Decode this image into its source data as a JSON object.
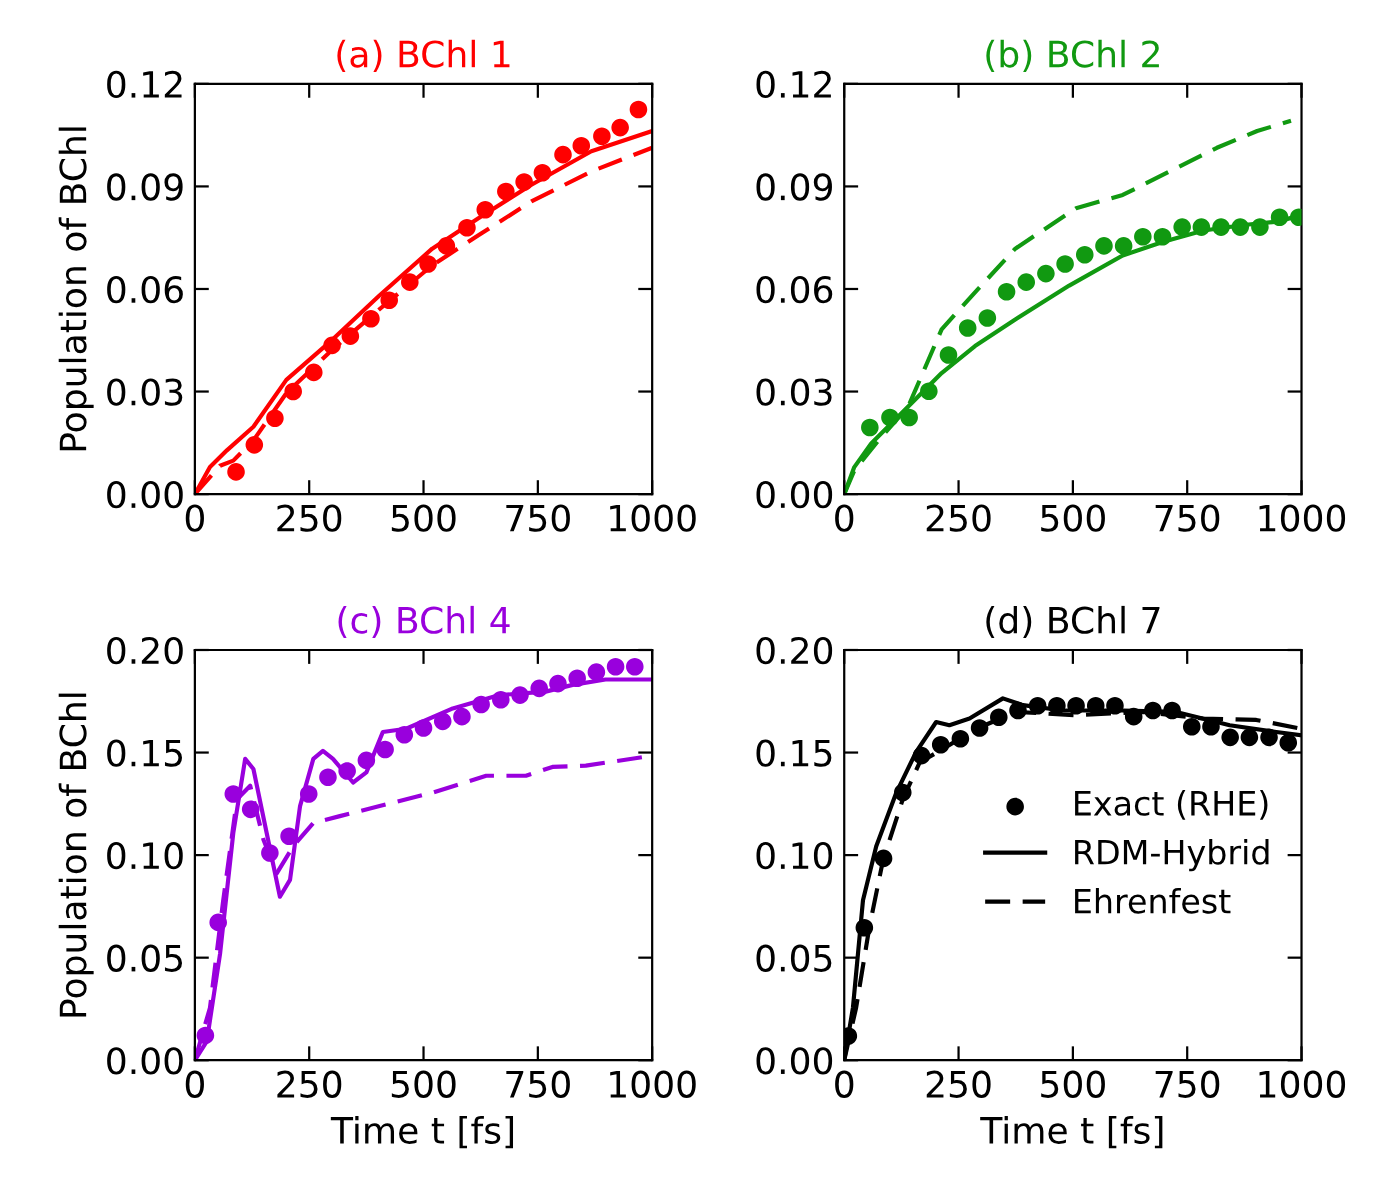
{
  "chart_data": [
    {
      "type": "line",
      "title": "(a) BChl 1",
      "ylabel": "Population of BChl",
      "xlim": [
        0,
        1000
      ],
      "xticks": [
        0,
        250,
        500,
        750,
        1000
      ],
      "ylim": [
        0,
        0.12
      ],
      "yticks": [
        {
          "value": 0,
          "label": "0.00"
        },
        {
          "value": 0.03,
          "label": "0.03"
        },
        {
          "value": 0.06,
          "label": "0.06"
        },
        {
          "value": 0.09,
          "label": "0.09"
        },
        {
          "value": 0.12,
          "label": "0.12"
        }
      ],
      "grid": false,
      "legend": false,
      "series": [
        {
          "type": "scatter",
          "marker": "circle",
          "color": "#ff0000",
          "x": [
            90,
            130,
            175,
            215,
            260,
            300,
            340,
            385,
            425,
            470,
            510,
            550,
            595,
            635,
            680,
            720,
            760,
            805,
            845,
            890,
            930,
            970
          ],
          "values": [
            0.0065,
            0.0144,
            0.0222,
            0.03,
            0.0356,
            0.0435,
            0.0462,
            0.0513,
            0.0567,
            0.062,
            0.0673,
            0.0726,
            0.0779,
            0.0832,
            0.0885,
            0.0913,
            0.094,
            0.0993,
            0.1019,
            0.1047,
            0.1072,
            0.1125
          ]
        },
        {
          "type": "line",
          "line_style": "solid",
          "color": "#ff0000",
          "x": [
            0,
            33,
            70,
            128,
            200,
            301,
            403,
            519,
            620,
            736,
            867,
            1000
          ],
          "values": [
            0,
            0.0079,
            0.0128,
            0.0197,
            0.0334,
            0.0452,
            0.058,
            0.0718,
            0.0807,
            0.0905,
            0.1003,
            0.1062
          ]
        },
        {
          "type": "line",
          "line_style": "dashed",
          "color": "#ff0000",
          "x": [
            0,
            55,
            84,
            128,
            200,
            301,
            403,
            519,
            620,
            736,
            867,
            1000
          ],
          "values": [
            0,
            0.0083,
            0.0098,
            0.0157,
            0.0295,
            0.0423,
            0.054,
            0.0669,
            0.0757,
            0.0856,
            0.0944,
            0.1013
          ]
        }
      ]
    },
    {
      "type": "line",
      "title": "(b) BChl 2",
      "xlim": [
        0,
        1000
      ],
      "xticks": [
        0,
        250,
        500,
        750,
        1000
      ],
      "ylim": [
        0,
        0.12
      ],
      "yticks": [
        {
          "value": 0,
          "label": "0.00"
        },
        {
          "value": 0.03,
          "label": "0.03"
        },
        {
          "value": 0.06,
          "label": "0.06"
        },
        {
          "value": 0.09,
          "label": "0.09"
        },
        {
          "value": 0.12,
          "label": "0.12"
        }
      ],
      "grid": false,
      "legend": false,
      "series": [
        {
          "type": "scatter",
          "marker": "circle",
          "color": "#119911",
          "x": [
            56,
            100,
            142,
            185,
            228,
            270,
            313,
            355,
            398,
            441,
            483,
            526,
            568,
            611,
            653,
            696,
            739,
            781,
            824,
            866,
            909,
            952,
            994
          ],
          "values": [
            0.0195,
            0.0224,
            0.0224,
            0.0301,
            0.0407,
            0.0486,
            0.0515,
            0.0592,
            0.062,
            0.0645,
            0.0673,
            0.07,
            0.0726,
            0.0726,
            0.0753,
            0.0753,
            0.0781,
            0.0781,
            0.0781,
            0.0781,
            0.0781,
            0.081,
            0.081
          ]
        },
        {
          "type": "line",
          "line_style": "solid",
          "color": "#119911",
          "x": [
            0,
            22,
            59,
            140,
            213,
            286,
            374,
            492,
            609,
            698,
            786,
            874,
            947,
            1000
          ],
          "values": [
            0,
            0.0079,
            0.0148,
            0.0256,
            0.0354,
            0.0433,
            0.0511,
            0.061,
            0.0698,
            0.0738,
            0.0771,
            0.0787,
            0.0797,
            0.0816
          ]
        },
        {
          "type": "line",
          "line_style": "dashed",
          "color": "#119911",
          "x": [
            0,
            22,
            81,
            140,
            213,
            286,
            374,
            507,
            609,
            712,
            815,
            903,
            977
          ],
          "values": [
            0,
            0.0069,
            0.0167,
            0.0256,
            0.0482,
            0.059,
            0.0718,
            0.0836,
            0.0875,
            0.0944,
            0.1013,
            0.1062,
            0.1092
          ]
        }
      ]
    },
    {
      "type": "line",
      "title": "(c) BChl 4",
      "ylabel": "Population of BChl",
      "xlabel": "Time t [fs]",
      "xlim": [
        0,
        1000
      ],
      "xticks": [
        0,
        250,
        500,
        750,
        1000
      ],
      "ylim": [
        0,
        0.2
      ],
      "yticks": [
        {
          "value": 0,
          "label": "0.00"
        },
        {
          "value": 0.05,
          "label": "0.05"
        },
        {
          "value": 0.1,
          "label": "0.10"
        },
        {
          "value": 0.15,
          "label": "0.15"
        },
        {
          "value": 0.2,
          "label": "0.20"
        }
      ],
      "grid": false,
      "legend": false,
      "series": [
        {
          "type": "scatter",
          "marker": "circle",
          "color": "#9900dd",
          "x": [
            23,
            51,
            84,
            122,
            164,
            206,
            249,
            291,
            333,
            375,
            416,
            458,
            500,
            542,
            584,
            626,
            669,
            711,
            753,
            794,
            836,
            878,
            920,
            962
          ],
          "values": [
            0.0121,
            0.0672,
            0.1298,
            0.1223,
            0.101,
            0.1092,
            0.1298,
            0.138,
            0.141,
            0.1462,
            0.1515,
            0.1587,
            0.162,
            0.1652,
            0.1675,
            0.1734,
            0.1757,
            0.178,
            0.1813,
            0.1836,
            0.1862,
            0.1892,
            0.1918,
            0.1918
          ]
        },
        {
          "type": "line",
          "line_style": "solid",
          "color": "#9900dd",
          "x": [
            0,
            26,
            55,
            84,
            110,
            128,
            157,
            186,
            208,
            230,
            259,
            280,
            302,
            346,
            375,
            411,
            462,
            564,
            666,
            767,
            826,
            898,
            1000
          ],
          "values": [
            0,
            0.0092,
            0.0518,
            0.1108,
            0.1469,
            0.142,
            0.1108,
            0.0797,
            0.0879,
            0.1239,
            0.1469,
            0.1508,
            0.1469,
            0.1354,
            0.1403,
            0.16,
            0.1616,
            0.1715,
            0.178,
            0.1797,
            0.183,
            0.1856,
            0.1856
          ]
        },
        {
          "type": "line",
          "line_style": "dashed",
          "color": "#9900dd",
          "x": [
            0,
            33,
            62,
            92,
            121,
            150,
            179,
            215,
            259,
            317,
            404,
            520,
            637,
            724,
            782,
            855,
            1000
          ],
          "values": [
            0,
            0.0256,
            0.078,
            0.1272,
            0.1338,
            0.1075,
            0.0911,
            0.1043,
            0.1157,
            0.119,
            0.1239,
            0.1305,
            0.1387,
            0.1387,
            0.143,
            0.1436,
            0.1485
          ]
        }
      ]
    },
    {
      "type": "line",
      "title": "(d) BChl 7",
      "xlabel": "Time t [fs]",
      "xlim": [
        0,
        1000
      ],
      "xticks": [
        0,
        250,
        500,
        750,
        1000
      ],
      "ylim": [
        0,
        0.2
      ],
      "yticks": [
        {
          "value": 0,
          "label": "0.00"
        },
        {
          "value": 0.05,
          "label": "0.05"
        },
        {
          "value": 0.1,
          "label": "0.10"
        },
        {
          "value": 0.15,
          "label": "0.15"
        },
        {
          "value": 0.2,
          "label": "0.20"
        }
      ],
      "grid": false,
      "legend": "right",
      "series": [
        {
          "type": "scatter",
          "name": "Exact (RHE)",
          "marker": "circle",
          "color": "#000000",
          "x": [
            9,
            44,
            86,
            128,
            169,
            211,
            254,
            296,
            338,
            380,
            423,
            465,
            507,
            550,
            592,
            633,
            675,
            717,
            760,
            802,
            844,
            886,
            929,
            971
          ],
          "values": [
            0.0118,
            0.0646,
            0.0984,
            0.1305,
            0.1485,
            0.1538,
            0.1567,
            0.162,
            0.1672,
            0.1705,
            0.1728,
            0.1728,
            0.1728,
            0.1728,
            0.1728,
            0.1675,
            0.1705,
            0.1705,
            0.1626,
            0.1626,
            0.1574,
            0.1574,
            0.1574,
            0.1548
          ]
        },
        {
          "type": "line",
          "name": "RDM-Hybrid",
          "line_style": "solid",
          "color": "#000000",
          "x": [
            0,
            19,
            41,
            70,
            114,
            157,
            201,
            230,
            274,
            347,
            391,
            478,
            609,
            726,
            843,
            945,
            1000
          ],
          "values": [
            0,
            0.0256,
            0.078,
            0.1043,
            0.1305,
            0.1502,
            0.1649,
            0.1633,
            0.1666,
            0.1764,
            0.1731,
            0.1705,
            0.1705,
            0.1698,
            0.1633,
            0.16,
            0.1584
          ]
        },
        {
          "type": "line",
          "name": "Ehrenfest",
          "line_style": "dashed",
          "color": "#000000",
          "x": [
            0,
            26,
            55,
            85,
            128,
            165,
            216,
            289,
            376,
            507,
            653,
            784,
            901,
            1000
          ],
          "values": [
            0,
            0.0256,
            0.0649,
            0.0977,
            0.1272,
            0.1452,
            0.1518,
            0.1616,
            0.1698,
            0.1682,
            0.1698,
            0.1666,
            0.1659,
            0.1616
          ]
        }
      ]
    }
  ]
}
